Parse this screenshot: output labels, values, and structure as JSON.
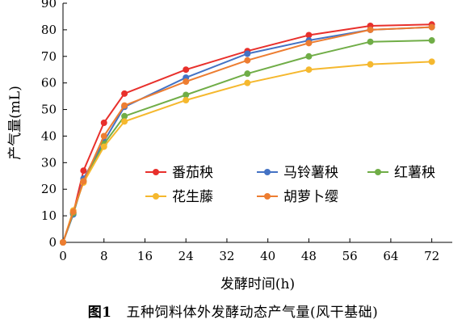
{
  "caption": {
    "figure_number": "图1",
    "text": "五种饲料体外发酵动态产气量(风干基础)"
  },
  "chart_data": {
    "type": "line",
    "xlabel": "发酵时间(h)",
    "ylabel": "产气量(mL)",
    "xlim": [
      0,
      76
    ],
    "ylim": [
      0,
      90
    ],
    "xticks": [
      0,
      8,
      16,
      24,
      32,
      40,
      48,
      56,
      64,
      72
    ],
    "yticks": [
      0,
      10,
      20,
      30,
      40,
      50,
      60,
      70,
      80,
      90
    ],
    "grid": false,
    "legend_position": "bottom-right",
    "x": [
      0,
      2,
      4,
      8,
      12,
      24,
      36,
      48,
      60,
      72
    ],
    "series": [
      {
        "name": "番茄秧",
        "color": "#e8302c",
        "values": [
          0,
          11,
          27,
          45,
          56,
          65,
          72,
          78,
          81.5,
          82
        ]
      },
      {
        "name": "马铃薯秧",
        "color": "#4472c4",
        "values": [
          0,
          10.5,
          24,
          38,
          51,
          62,
          71,
          76,
          80,
          81
        ]
      },
      {
        "name": "红薯秧",
        "color": "#70ad47",
        "values": [
          0,
          11,
          23,
          37,
          47.5,
          55.5,
          63.5,
          70,
          75.5,
          76
        ]
      },
      {
        "name": "花生藤",
        "color": "#f5b82e",
        "values": [
          0,
          12,
          22.5,
          36,
          45.5,
          53.5,
          60,
          65,
          67,
          68
        ]
      },
      {
        "name": "胡萝卜缨",
        "color": "#ed7d31",
        "values": [
          0,
          11.5,
          23,
          40,
          51.5,
          60.5,
          68.5,
          75,
          80,
          81
        ]
      }
    ]
  }
}
